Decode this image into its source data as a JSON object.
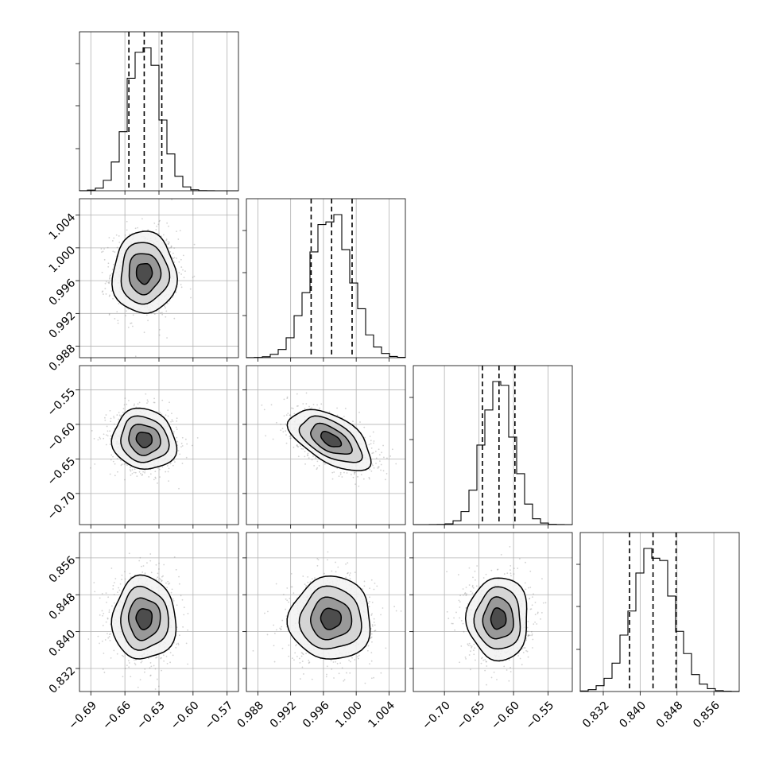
{
  "chart_data": {
    "type": "corner",
    "n_params": 4,
    "params": [
      {
        "index": 0,
        "range": [
          -0.7,
          -0.56
        ],
        "ticks": [
          -0.69,
          -0.66,
          -0.63,
          -0.6,
          -0.57
        ],
        "tick_labels": [
          "−0.69",
          "−0.66",
          "−0.63",
          "−0.60",
          "−0.57"
        ],
        "mean": -0.643,
        "sd": 0.014,
        "quantiles": [
          -0.6565,
          -0.643,
          -0.6275
        ]
      },
      {
        "index": 1,
        "range": [
          0.9866,
          1.006
        ],
        "ticks": [
          0.988,
          0.992,
          0.996,
          1.0,
          1.004
        ],
        "tick_labels": [
          "0.988",
          "0.992",
          "0.996",
          "1.000",
          "1.004"
        ],
        "mean": 0.9969,
        "sd": 0.0025,
        "quantiles": [
          0.9945,
          0.997,
          0.9995
        ]
      },
      {
        "index": 2,
        "range": [
          -0.745,
          -0.515
        ],
        "ticks": [
          -0.7,
          -0.65,
          -0.6,
          -0.55
        ],
        "tick_labels": [
          "−0.70",
          "−0.65",
          "−0.60",
          "−0.55"
        ],
        "mean": -0.622,
        "sd": 0.022,
        "quantiles": [
          -0.645,
          -0.621,
          -0.598
        ]
      },
      {
        "index": 3,
        "range": [
          0.827,
          0.8615
        ],
        "ticks": [
          0.832,
          0.84,
          0.848,
          0.856
        ],
        "tick_labels": [
          "0.832",
          "0.840",
          "0.848",
          "0.856"
        ],
        "mean": 0.8428,
        "sd": 0.0045,
        "quantiles": [
          0.8377,
          0.8428,
          0.8478
        ]
      }
    ],
    "correlations": [
      {
        "pair": [
          1,
          0
        ],
        "rho": 0.0
      },
      {
        "pair": [
          2,
          0
        ],
        "rho": -0.1
      },
      {
        "pair": [
          2,
          1
        ],
        "rho": -0.55
      },
      {
        "pair": [
          3,
          0
        ],
        "rho": 0.0
      },
      {
        "pair": [
          3,
          1
        ],
        "rho": 0.0
      },
      {
        "pair": [
          3,
          2
        ],
        "rho": 0.0
      }
    ],
    "histogram_bins": 20,
    "contour_levels_sigma": [
      0.5,
      1.0,
      1.5,
      2.0
    ],
    "quantile_probs": [
      0.16,
      0.5,
      0.84
    ],
    "grid": true,
    "colors": {
      "points": "#7f7f7f",
      "density": "#000000",
      "lines": "#000000",
      "grid": "#b0b0b0"
    }
  }
}
